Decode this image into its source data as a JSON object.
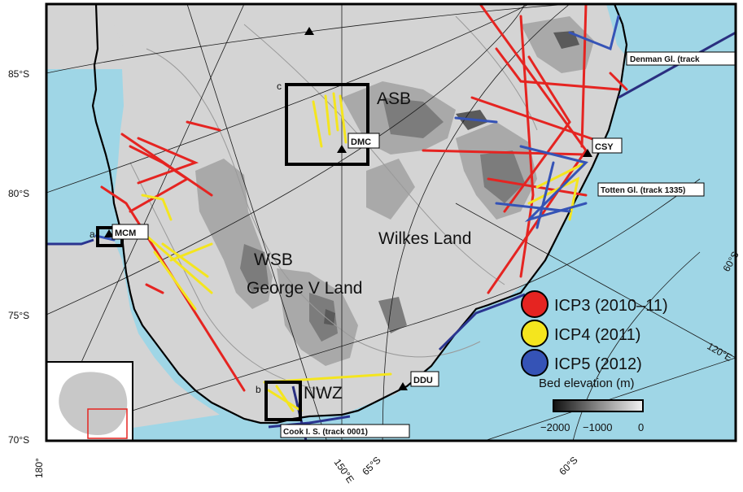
{
  "colors": {
    "ocean": "#9fd6e6",
    "land_light": "#d4d4d4",
    "land_mid": "#a9a9a9",
    "land_dark": "#7c7c7c",
    "land_darkest": "#5a5a5a",
    "coast": "#000000",
    "ice_front": "#2a3490",
    "icp3": "#e52421",
    "icp4": "#f4e51e",
    "icp5": "#3553b6",
    "flight_line": "#2a2f80"
  },
  "lat_labels": [
    "85°S",
    "80°S",
    "75°S",
    "70°S",
    "65°S",
    "60°S",
    "60°S",
    "60°S"
  ],
  "lon_labels": [
    "180°",
    "150°E",
    "120°E"
  ],
  "regions": [
    "ASB",
    "Wilkes Land",
    "WSB",
    "George V Land",
    "NWZ"
  ],
  "box_letters": [
    "a",
    "b",
    "c"
  ],
  "stations": [
    "DMC",
    "CSY",
    "MCM",
    "DDU"
  ],
  "track_labels": [
    "Denman Gl. (track",
    "Totten Gl. (track 1335)",
    "Cook I. S. (track 0001)"
  ],
  "legend": {
    "items": [
      {
        "label": "ICP3 (2010–11)",
        "color": "#e52421"
      },
      {
        "label": "ICP4 (2011)",
        "color": "#f4e51e"
      },
      {
        "label": "ICP5 (2012)",
        "color": "#3553b6"
      }
    ],
    "colorbar_title": "Bed elevation (m)",
    "colorbar_ticks": [
      "−2000",
      "−1000",
      "0"
    ]
  }
}
